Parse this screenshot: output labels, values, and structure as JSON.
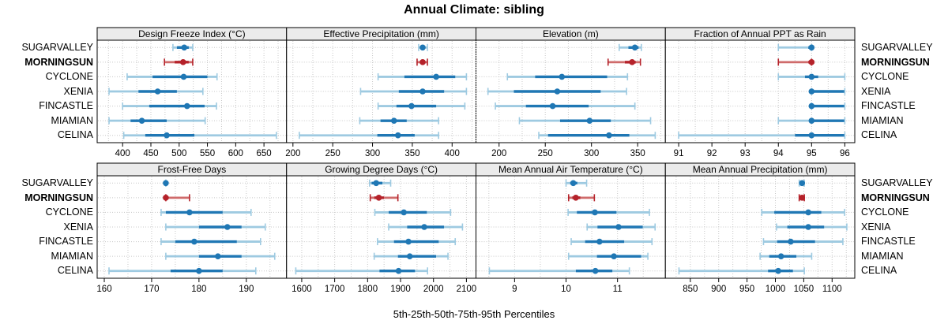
{
  "title": "Annual Climate: sibling",
  "caption": "5th-25th-50th-75th-95th Percentiles",
  "percentiles": [
    "5th",
    "25th",
    "50th",
    "75th",
    "95th"
  ],
  "stations": [
    {
      "name": "SUGARVALLEY",
      "highlight": false
    },
    {
      "name": "MORNINGSUN",
      "highlight": true
    },
    {
      "name": "CYCLONE",
      "highlight": false
    },
    {
      "name": "XENIA",
      "highlight": false
    },
    {
      "name": "FINCASTLE",
      "highlight": false
    },
    {
      "name": "MIAMIAN",
      "highlight": false
    },
    {
      "name": "CELINA",
      "highlight": false
    }
  ],
  "colors": {
    "series_dark_blue": "#1f77b4",
    "series_light_blue": "#9ecae1",
    "highlight_dark_red": "#b5222a",
    "highlight_light_red": "#cf6b6b",
    "strip_bg": "#ebebeb",
    "grid": "#c8c8c8",
    "panel_border": "#000000",
    "text": "#000000"
  },
  "chart_data": [
    {
      "type": "dotplot",
      "row": 1,
      "title": "Design Freeze Index (°C)",
      "domain": [
        355,
        690
      ],
      "ticks": [
        400,
        450,
        500,
        550,
        600,
        650
      ],
      "minor_step": 25,
      "series": [
        {
          "station": "SUGARVALLEY",
          "values": [
            489,
            496,
            509,
            517,
            524
          ]
        },
        {
          "station": "MORNINGSUN",
          "values": [
            474,
            492,
            507,
            517,
            524
          ]
        },
        {
          "station": "CYCLONE",
          "values": [
            408,
            453,
            508,
            550,
            567
          ]
        },
        {
          "station": "XENIA",
          "values": [
            376,
            428,
            462,
            496,
            542
          ]
        },
        {
          "station": "FINCASTLE",
          "values": [
            400,
            447,
            514,
            545,
            566
          ]
        },
        {
          "station": "MIAMIAN",
          "values": [
            376,
            414,
            434,
            478,
            546
          ]
        },
        {
          "station": "CELINA",
          "values": [
            402,
            440,
            478,
            527,
            672
          ]
        }
      ]
    },
    {
      "type": "dotplot",
      "row": 1,
      "title": "Effective Precipitation (mm)",
      "domain": [
        192,
        430
      ],
      "ticks": [
        200,
        250,
        300,
        350,
        400
      ],
      "minor_step": 25,
      "series": [
        {
          "station": "SUGARVALLEY",
          "values": [
            358,
            361,
            363,
            366,
            369
          ]
        },
        {
          "station": "MORNINGSUN",
          "values": [
            356,
            360,
            363,
            365,
            369
          ]
        },
        {
          "station": "CYCLONE",
          "values": [
            307,
            340,
            380,
            404,
            418
          ]
        },
        {
          "station": "XENIA",
          "values": [
            285,
            333,
            363,
            390,
            418
          ]
        },
        {
          "station": "FINCASTLE",
          "values": [
            307,
            330,
            349,
            380,
            416
          ]
        },
        {
          "station": "MIAMIAN",
          "values": [
            284,
            310,
            327,
            343,
            383
          ]
        },
        {
          "station": "CELINA",
          "values": [
            208,
            306,
            332,
            353,
            383
          ]
        }
      ]
    },
    {
      "type": "dotplot",
      "row": 1,
      "title": "Elevation (m)",
      "domain": [
        175,
        380
      ],
      "ticks": [
        200,
        250,
        300,
        350
      ],
      "minor_step": 25,
      "series": [
        {
          "station": "SUGARVALLEY",
          "values": [
            330,
            340,
            347,
            351,
            354
          ]
        },
        {
          "station": "MORNINGSUN",
          "values": [
            318,
            336,
            344,
            348,
            353
          ]
        },
        {
          "station": "CYCLONE",
          "values": [
            209,
            239,
            268,
            317,
            339
          ]
        },
        {
          "station": "XENIA",
          "values": [
            188,
            216,
            263,
            310,
            338
          ]
        },
        {
          "station": "FINCASTLE",
          "values": [
            196,
            229,
            258,
            297,
            347
          ]
        },
        {
          "station": "MIAMIAN",
          "values": [
            222,
            266,
            298,
            321,
            364
          ]
        },
        {
          "station": "CELINA",
          "values": [
            243,
            253,
            319,
            341,
            369
          ]
        }
      ]
    },
    {
      "type": "dotplot",
      "row": 1,
      "title": "Fraction of Annual PPT as Rain",
      "domain": [
        90.6,
        96.3
      ],
      "ticks": [
        91,
        92,
        93,
        94,
        95,
        96
      ],
      "minor_step": 0.5,
      "series": [
        {
          "station": "SUGARVALLEY",
          "values": [
            94,
            94.9,
            95,
            95,
            95
          ]
        },
        {
          "station": "MORNINGSUN",
          "values": [
            94,
            94.9,
            95,
            95,
            95
          ]
        },
        {
          "station": "CYCLONE",
          "values": [
            94,
            94.8,
            95,
            95.2,
            96
          ]
        },
        {
          "station": "XENIA",
          "values": [
            95,
            95,
            95,
            96,
            96
          ]
        },
        {
          "station": "FINCASTLE",
          "values": [
            95,
            95,
            95,
            96,
            96
          ]
        },
        {
          "station": "MIAMIAN",
          "values": [
            94,
            95,
            95,
            96,
            96
          ]
        },
        {
          "station": "CELINA",
          "values": [
            91,
            94.5,
            95,
            96,
            96
          ]
        }
      ]
    },
    {
      "type": "dotplot",
      "row": 2,
      "title": "Frost-Free Days",
      "domain": [
        158.5,
        198.5
      ],
      "ticks": [
        160,
        170,
        180,
        190
      ],
      "minor_step": 5,
      "series": [
        {
          "station": "SUGARVALLEY",
          "values": [
            173,
            173,
            173,
            173,
            173
          ]
        },
        {
          "station": "MORNINGSUN",
          "values": [
            173,
            173,
            173,
            173,
            178
          ]
        },
        {
          "station": "CYCLONE",
          "values": [
            172,
            173,
            178,
            185,
            191
          ]
        },
        {
          "station": "XENIA",
          "values": [
            173,
            180,
            186,
            189,
            194
          ]
        },
        {
          "station": "FINCASTLE",
          "values": [
            172,
            175,
            179,
            188,
            193
          ]
        },
        {
          "station": "MIAMIAN",
          "values": [
            173,
            180,
            184,
            189,
            196
          ]
        },
        {
          "station": "CELINA",
          "values": [
            161,
            174,
            180,
            185,
            192
          ]
        }
      ]
    },
    {
      "type": "dotplot",
      "row": 2,
      "title": "Growing Degree Days (°C)",
      "domain": [
        1554,
        2129
      ],
      "ticks": [
        1600,
        1700,
        1800,
        1900,
        2000,
        2100
      ],
      "minor_step": 50,
      "series": [
        {
          "station": "SUGARVALLEY",
          "values": [
            1806,
            1812,
            1826,
            1845,
            1870
          ]
        },
        {
          "station": "MORNINGSUN",
          "values": [
            1808,
            1820,
            1834,
            1850,
            1892
          ]
        },
        {
          "station": "CYCLONE",
          "values": [
            1822,
            1864,
            1910,
            1980,
            2052
          ]
        },
        {
          "station": "XENIA",
          "values": [
            1864,
            1920,
            1972,
            2032,
            2088
          ]
        },
        {
          "station": "FINCASTLE",
          "values": [
            1830,
            1880,
            1924,
            2016,
            2066
          ]
        },
        {
          "station": "MIAMIAN",
          "values": [
            1820,
            1892,
            1928,
            2008,
            2044
          ]
        },
        {
          "station": "CELINA",
          "values": [
            1582,
            1836,
            1894,
            1944,
            1982
          ]
        }
      ]
    },
    {
      "type": "dotplot",
      "row": 2,
      "title": "Mean Annual Air Temperature (°C)",
      "domain": [
        8.25,
        11.93
      ],
      "ticks": [
        9,
        10,
        11
      ],
      "minor_step": 0.5,
      "series": [
        {
          "station": "SUGARVALLEY",
          "values": [
            10.0,
            10.08,
            10.14,
            10.22,
            10.4
          ]
        },
        {
          "station": "MORNINGSUN",
          "values": [
            10.05,
            10.12,
            10.19,
            10.28,
            10.55
          ]
        },
        {
          "station": "CYCLONE",
          "values": [
            10.04,
            10.21,
            10.56,
            10.98,
            11.62
          ]
        },
        {
          "station": "XENIA",
          "values": [
            10.41,
            10.61,
            11.02,
            11.49,
            11.73
          ]
        },
        {
          "station": "FINCASTLE",
          "values": [
            10.1,
            10.37,
            10.65,
            11.13,
            11.67
          ]
        },
        {
          "station": "MIAMIAN",
          "values": [
            10.05,
            10.6,
            10.93,
            11.46,
            11.59
          ]
        },
        {
          "station": "CELINA",
          "values": [
            8.51,
            10.19,
            10.57,
            10.9,
            11.23
          ]
        }
      ]
    },
    {
      "type": "dotplot",
      "row": 2,
      "title": "Mean Annual Precipitation (mm)",
      "domain": [
        806,
        1140
      ],
      "ticks": [
        850,
        900,
        950,
        1000,
        1050,
        1100
      ],
      "minor_step": 25,
      "series": [
        {
          "station": "SUGARVALLEY",
          "values": [
            1042,
            1045,
            1047,
            1049,
            1051
          ]
        },
        {
          "station": "MORNINGSUN",
          "values": [
            1042,
            1045,
            1047,
            1049,
            1051
          ]
        },
        {
          "station": "CYCLONE",
          "values": [
            976,
            998,
            1058,
            1081,
            1122
          ]
        },
        {
          "station": "XENIA",
          "values": [
            1002,
            1021,
            1058,
            1086,
            1126
          ]
        },
        {
          "station": "FINCASTLE",
          "values": [
            979,
            1003,
            1027,
            1070,
            1119
          ]
        },
        {
          "station": "MIAMIAN",
          "values": [
            973,
            989,
            1010,
            1037,
            1064
          ]
        },
        {
          "station": "CELINA",
          "values": [
            830,
            987,
            1005,
            1031,
            1051
          ]
        }
      ]
    }
  ]
}
